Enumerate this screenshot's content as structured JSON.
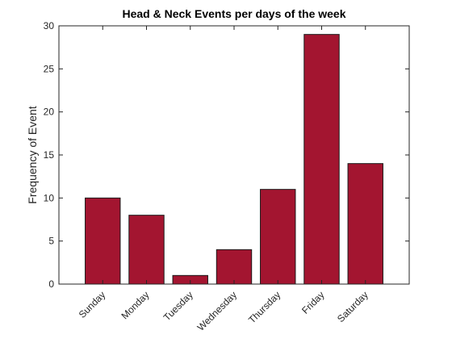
{
  "chart_data": {
    "type": "bar",
    "title": "Head & Neck Events per days of the week",
    "xlabel": "",
    "ylabel": "Frequency of Event",
    "categories": [
      "Sunday",
      "Monday",
      "Tuesday",
      "Wednesday",
      "Thursday",
      "Friday",
      "Saturday"
    ],
    "values": [
      10,
      8,
      1,
      4,
      11,
      29,
      14
    ],
    "ylim": [
      0,
      30
    ],
    "yticks": [
      0,
      5,
      10,
      15,
      20,
      25,
      30
    ],
    "grid": false,
    "bar_color": "#A31530",
    "x_tick_rotation_deg": 45
  }
}
